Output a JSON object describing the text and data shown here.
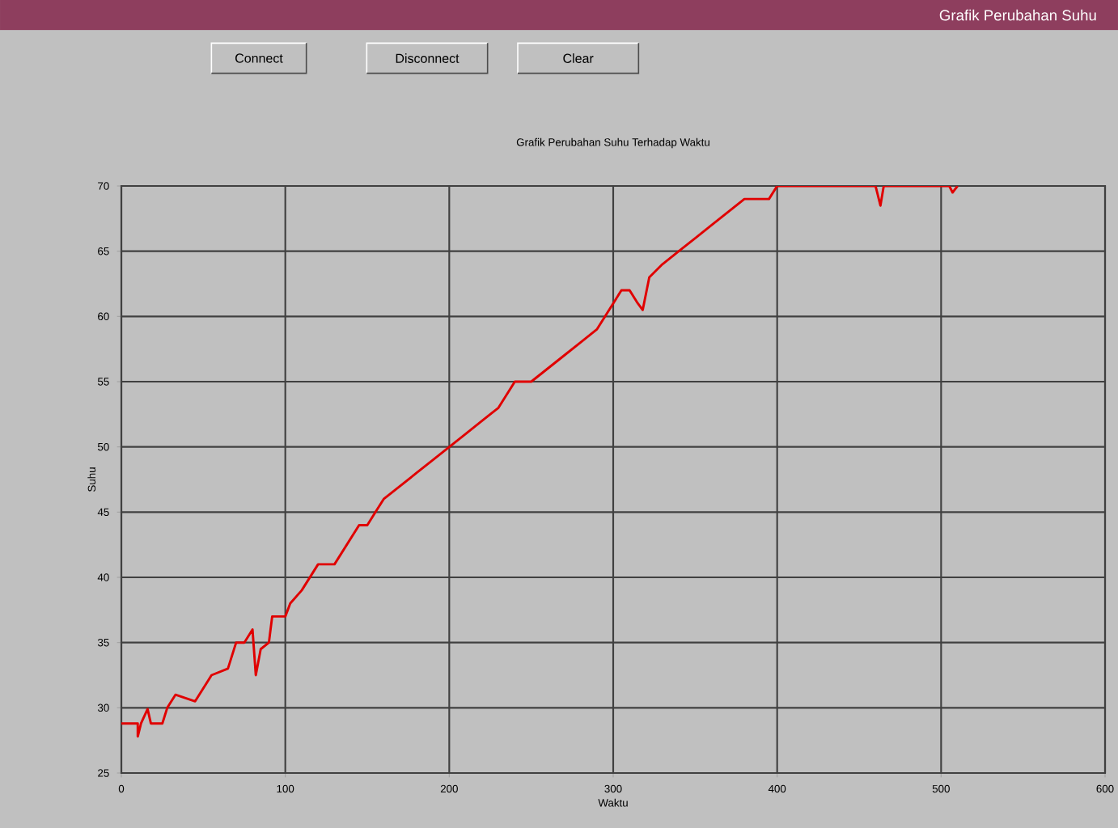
{
  "chart_data": {
    "type": "line",
    "title": "Grafik Perubahan Suhu Terhadap Waktu",
    "xlabel": "Waktu",
    "ylabel": "Suhu",
    "annotations": [
      "Grafik Perubahan Suhu",
      "Connect",
      "Disconnect",
      "Clear"
    ],
    "xlim": [
      0,
      600
    ],
    "xticks": [
      0,
      100,
      200,
      300,
      400,
      500,
      600
    ],
    "ylim": [
      25,
      70
    ],
    "yticks": [
      25,
      30,
      35,
      40,
      45,
      50,
      55,
      60,
      65,
      70
    ],
    "grid": true,
    "marker": "none",
    "line_style": "solid",
    "series": [
      {
        "color": "#e00000",
        "x": [
          0,
          10,
          10,
          12,
          16,
          18,
          25,
          28,
          33,
          45,
          50,
          55,
          65,
          70,
          75,
          80,
          82,
          85,
          90,
          92,
          100,
          103,
          110,
          115,
          120,
          130,
          135,
          140,
          145,
          150,
          155,
          160,
          170,
          180,
          190,
          200,
          210,
          220,
          230,
          240,
          250,
          260,
          270,
          280,
          290,
          300,
          305,
          310,
          315,
          318,
          322,
          330,
          340,
          345,
          350,
          360,
          370,
          380,
          395,
          400,
          420,
          440,
          460,
          463,
          465,
          505,
          507,
          510
        ],
        "values": [
          28.8,
          28.8,
          27.8,
          28.8,
          29.9,
          28.8,
          28.8,
          30,
          31,
          30.5,
          31.5,
          32.5,
          33,
          35,
          35,
          36,
          32.5,
          34.5,
          35,
          37,
          37,
          38,
          39,
          40,
          41,
          41,
          42,
          43,
          44,
          44,
          45,
          46,
          47,
          48,
          49,
          50,
          51,
          52,
          53,
          55,
          55,
          56,
          57,
          58,
          59,
          61,
          62,
          62,
          61,
          60.5,
          63,
          64,
          65,
          65.5,
          66,
          67,
          68,
          69,
          69,
          70,
          70,
          70,
          70,
          68.5,
          70,
          70,
          69.5,
          70
        ]
      }
    ]
  }
}
